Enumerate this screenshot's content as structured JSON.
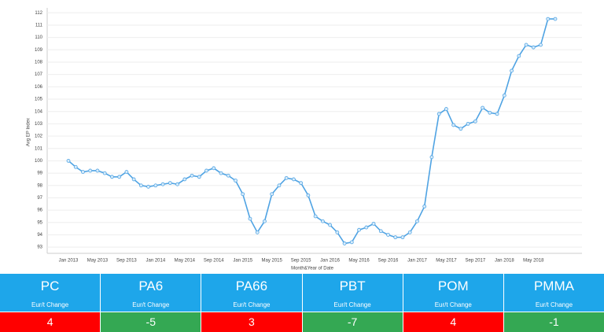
{
  "chart_data": {
    "type": "line",
    "y_label": "Avg EP Index",
    "x_label": "Month&Year of Date",
    "categories": [
      "Jan 2013",
      null,
      null,
      null,
      "May 2013",
      null,
      null,
      null,
      "Sep 2013",
      null,
      null,
      null,
      "Jan 2014",
      null,
      null,
      null,
      "May 2014",
      null,
      null,
      null,
      "Sep 2014",
      null,
      null,
      null,
      "Jan 2015",
      null,
      null,
      null,
      "May 2015",
      null,
      null,
      null,
      "Sep 2015",
      null,
      null,
      null,
      "Jan 2016",
      null,
      null,
      null,
      "May 2016",
      null,
      null,
      null,
      "Sep 2016",
      null,
      null,
      null,
      "Jan 2017",
      null,
      null,
      null,
      "May 2017",
      null,
      null,
      null,
      "Sep 2017",
      null,
      null,
      null,
      "Jan 2018",
      null,
      null,
      null,
      "May 2018",
      null,
      null,
      null
    ],
    "series": [
      {
        "name": "Avg EP Index",
        "color": "#4fa3e3",
        "values": [
          100,
          99.5,
          99.1,
          99.2,
          99.2,
          99.0,
          98.7,
          98.7,
          99.1,
          98.5,
          98.0,
          97.9,
          98.0,
          98.1,
          98.2,
          98.1,
          98.5,
          98.8,
          98.7,
          99.2,
          99.4,
          99.0,
          98.8,
          98.4,
          97.3,
          95.3,
          94.2,
          95.1,
          97.3,
          98.0,
          98.6,
          98.5,
          98.2,
          97.2,
          95.5,
          95.1,
          94.8,
          94.2,
          93.3,
          93.4,
          94.4,
          94.6,
          94.9,
          94.3,
          94.0,
          93.8,
          93.8,
          94.2,
          95.1,
          96.3,
          100.3,
          103.8,
          104.2,
          102.9,
          102.6,
          103.0,
          103.2,
          104.3,
          103.9,
          103.8,
          105.3,
          107.3,
          108.5,
          109.4,
          109.2,
          109.4,
          111.5,
          111.5
        ]
      }
    ],
    "ylim": [
      92.5,
      112.4
    ],
    "yticks": [
      93,
      94,
      95,
      96,
      97,
      98,
      99,
      100,
      101,
      102,
      103,
      104,
      105,
      106,
      107,
      108,
      109,
      110,
      111,
      112
    ],
    "grid": true
  },
  "tiles": [
    {
      "name": "PC",
      "subtitle": "Eur/t Change",
      "value": "4",
      "color": "#ff0000"
    },
    {
      "name": "PA6",
      "subtitle": "Eur/t Change",
      "value": "-5",
      "color": "#34a853"
    },
    {
      "name": "PA66",
      "subtitle": "Eur/t Change",
      "value": "3",
      "color": "#ff0000"
    },
    {
      "name": "PBT",
      "subtitle": "Eur/t Change",
      "value": "-7",
      "color": "#34a853"
    },
    {
      "name": "POM",
      "subtitle": "Eur/t Change",
      "value": "4",
      "color": "#ff0000"
    },
    {
      "name": "PMMA",
      "subtitle": "Eur/t Change",
      "value": "-1",
      "color": "#34a853"
    }
  ]
}
